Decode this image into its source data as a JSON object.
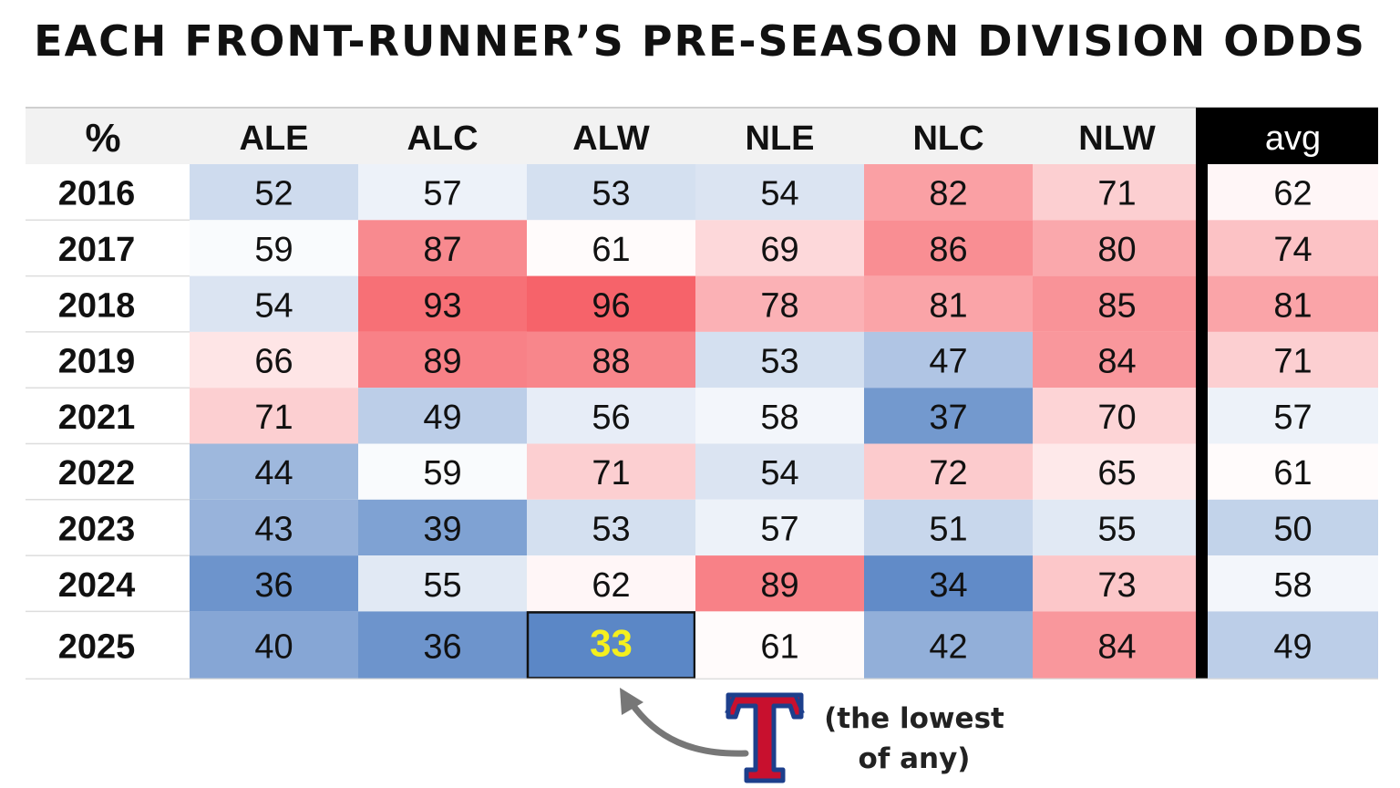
{
  "title": "EACH FRONT-RUNNER’S PRE-SEASON DIVISION ODDS",
  "chart_data": {
    "type": "heatmap",
    "corner_label": "%",
    "columns": [
      "ALE",
      "ALC",
      "ALW",
      "NLE",
      "NLC",
      "NLW"
    ],
    "avg_label": "avg",
    "rows": [
      {
        "year": "2016",
        "values": [
          52,
          57,
          53,
          54,
          82,
          71
        ],
        "avg": 62
      },
      {
        "year": "2017",
        "values": [
          59,
          87,
          61,
          69,
          86,
          80
        ],
        "avg": 74
      },
      {
        "year": "2018",
        "values": [
          54,
          93,
          96,
          78,
          81,
          85
        ],
        "avg": 81
      },
      {
        "year": "2019",
        "values": [
          66,
          89,
          88,
          53,
          47,
          84
        ],
        "avg": 71
      },
      {
        "year": "2021",
        "values": [
          71,
          49,
          56,
          58,
          37,
          70
        ],
        "avg": 57
      },
      {
        "year": "2022",
        "values": [
          44,
          59,
          71,
          54,
          72,
          65
        ],
        "avg": 61
      },
      {
        "year": "2023",
        "values": [
          43,
          39,
          53,
          57,
          51,
          55
        ],
        "avg": 50
      },
      {
        "year": "2024",
        "values": [
          36,
          55,
          62,
          89,
          34,
          73
        ],
        "avg": 58
      },
      {
        "year": "2025",
        "values": [
          40,
          36,
          33,
          61,
          42,
          84
        ],
        "avg": 49
      }
    ],
    "highlight": {
      "year": "2025",
      "column": "ALW",
      "value": 33
    },
    "color_scale": {
      "low": "#5b87c6",
      "mid": "#ffffff",
      "high": "#f6636a",
      "domain": [
        33,
        60,
        96
      ]
    },
    "colors": {
      "highlight_text": "#f5ef1e",
      "avg_header_bg": "#000000",
      "avg_header_text": "#ffffff"
    }
  },
  "annotation": {
    "note_line1": "(the lowest",
    "note_line2": "of any)",
    "logo_letter": "T",
    "icons": {
      "logo": "rangers-logo-icon",
      "arrow": "curved-arrow-icon"
    }
  }
}
